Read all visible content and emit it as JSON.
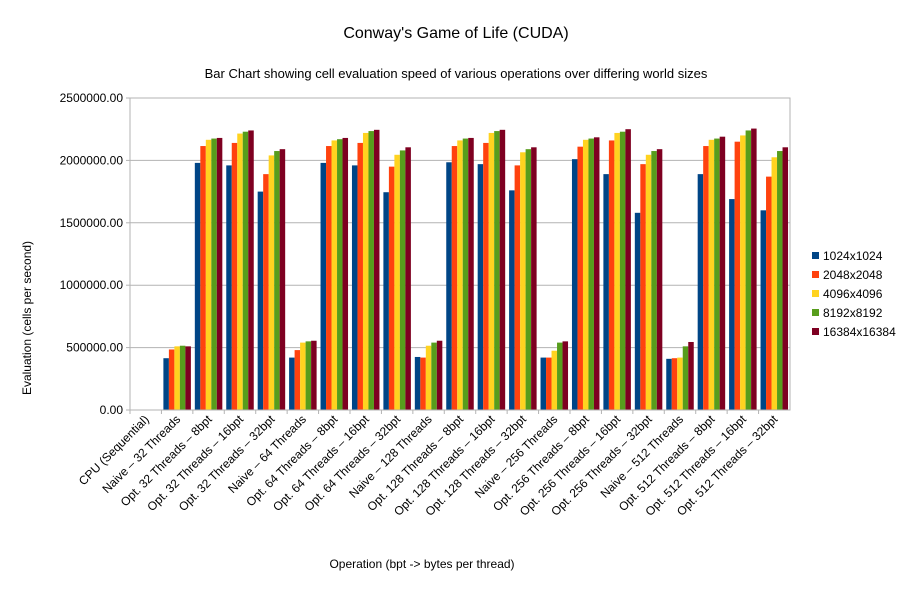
{
  "chart_data": {
    "type": "bar",
    "title": "Conway's Game of Life (CUDA)",
    "subtitle": "Bar Chart showing cell evaluation speed of various operations over differing world sizes",
    "xlabel": "Operation (bpt -> bytes per thread)",
    "ylabel": "Evaluation (cells per second)",
    "ylim": [
      0,
      2500000
    ],
    "yticks": [
      "0.00",
      "500000.00",
      "1000000.00",
      "1500000.00",
      "2000000.00",
      "2500000.00"
    ],
    "yticks_values": [
      0,
      500000,
      1000000,
      1500000,
      2000000,
      2500000
    ],
    "grid": true,
    "legend_position": "right",
    "categories": [
      "CPU (Sequential)",
      "Naive – 32 Threads",
      "Opt. 32 Threads – 8bpt",
      "Opt. 32 Threads – 16bpt",
      "Opt. 32 Threads – 32bpt",
      "Naive – 64 Threads",
      "Opt. 64 Threads – 8bpt",
      "Opt. 64 Threads – 16bpt",
      "Opt. 64 Threads – 32bpt",
      "Naive – 128 Threads",
      "Opt. 128 Threads – 8bpt",
      "Opt. 128 Threads – 16bpt",
      "Opt. 128 Threads – 32bpt",
      "Naive – 256 Threads",
      "Opt. 256 Threads – 8bpt",
      "Opt. 256 Threads – 16bpt",
      "Opt. 256 Threads – 32bpt",
      "Naive – 512 Threads",
      "Opt. 512 Threads – 8bpt",
      "Opt. 512 Threads – 16bpt",
      "Opt. 512 Threads – 32bpt"
    ],
    "series": [
      {
        "name": "1024x1024",
        "color": "#004586",
        "values": [
          0,
          415000,
          1980000,
          1960000,
          1750000,
          420000,
          1980000,
          1960000,
          1745000,
          425000,
          1985000,
          1970000,
          1760000,
          420000,
          2010000,
          1890000,
          1580000,
          410000,
          1890000,
          1690000,
          1600000
        ]
      },
      {
        "name": "2048x2048",
        "color": "#ff420e",
        "values": [
          0,
          485000,
          2115000,
          2140000,
          1890000,
          480000,
          2115000,
          2140000,
          1950000,
          420000,
          2115000,
          2140000,
          1960000,
          420000,
          2110000,
          2160000,
          1970000,
          415000,
          2115000,
          2150000,
          1870000
        ]
      },
      {
        "name": "4096x4096",
        "color": "#ffd320",
        "values": [
          0,
          510000,
          2165000,
          2215000,
          2040000,
          540000,
          2160000,
          2220000,
          2045000,
          515000,
          2160000,
          2220000,
          2065000,
          475000,
          2165000,
          2220000,
          2045000,
          420000,
          2165000,
          2200000,
          2025000
        ]
      },
      {
        "name": "8192x8192",
        "color": "#579d1c",
        "values": [
          0,
          515000,
          2175000,
          2230000,
          2075000,
          550000,
          2170000,
          2235000,
          2080000,
          540000,
          2175000,
          2235000,
          2090000,
          540000,
          2175000,
          2230000,
          2075000,
          510000,
          2175000,
          2240000,
          2075000
        ]
      },
      {
        "name": "16384x16384",
        "color": "#7e0021",
        "values": [
          0,
          510000,
          2180000,
          2240000,
          2090000,
          555000,
          2180000,
          2245000,
          2105000,
          555000,
          2180000,
          2245000,
          2105000,
          550000,
          2185000,
          2250000,
          2090000,
          545000,
          2190000,
          2255000,
          2105000
        ]
      }
    ]
  }
}
